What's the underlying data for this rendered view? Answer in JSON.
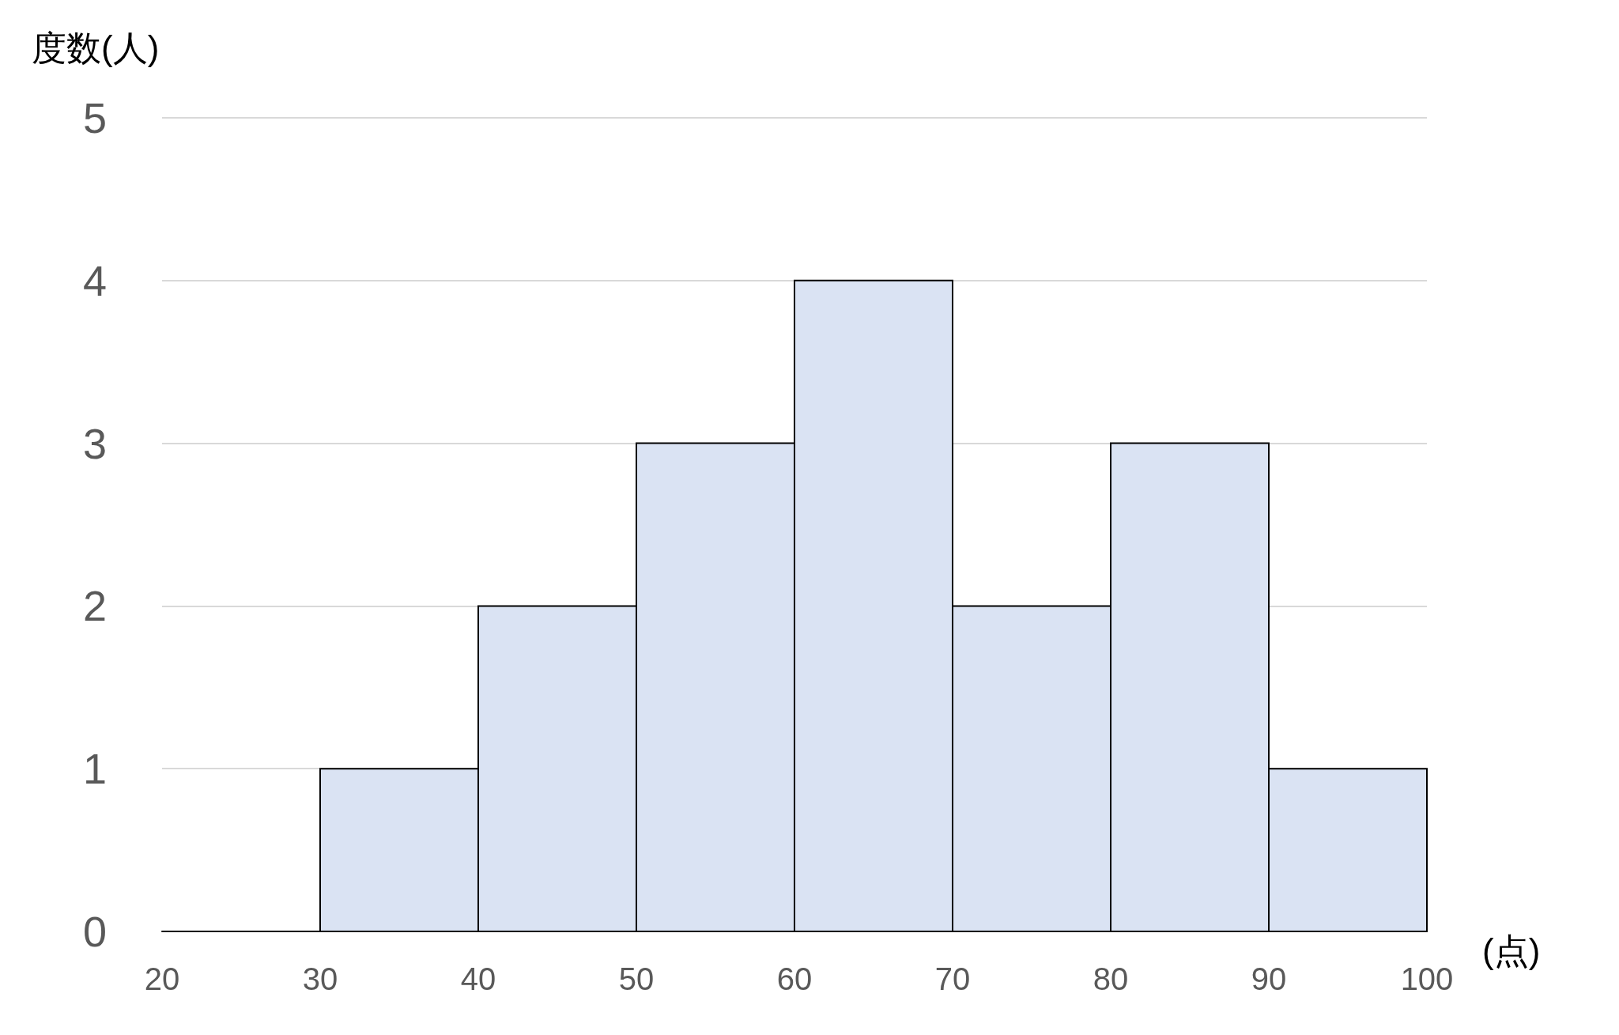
{
  "chart_data": {
    "type": "histogram",
    "ylabel": "度数(人)",
    "xlabel": "(点)",
    "bins": [
      20,
      30,
      40,
      50,
      60,
      70,
      80,
      90,
      100
    ],
    "values": [
      0,
      1,
      2,
      3,
      4,
      2,
      3,
      1
    ],
    "color": "#dae3f3",
    "xlim": [
      20,
      100
    ],
    "xticks": [
      20,
      30,
      40,
      50,
      60,
      70,
      80,
      90,
      100
    ],
    "ylim": [
      0,
      5
    ],
    "yticks": [
      0,
      1,
      2,
      3,
      4,
      5
    ],
    "grid": "y"
  }
}
